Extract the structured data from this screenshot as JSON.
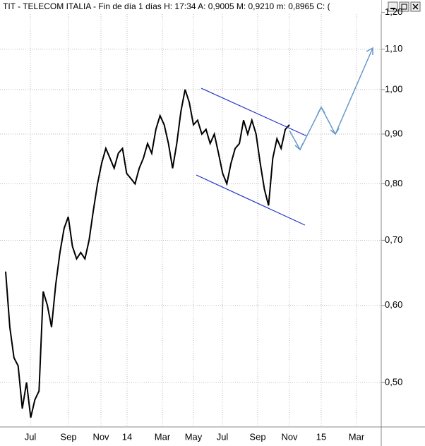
{
  "chart_data": {
    "type": "line",
    "title": "TIT - TELECOM ITALIA - Fin de día 1 días  H: 17:34  A: 0,9005  M: 0,9210  m: 0,8965  C: (",
    "x_axis_labels": [
      "Jul",
      "Sep",
      "Nov",
      "14",
      "Mar",
      "May",
      "Jul",
      "Sep",
      "Nov",
      "15",
      "Mar"
    ],
    "series": [
      {
        "name": "TIT",
        "color": "#000000",
        "values": [
          0.65,
          0.57,
          0.53,
          0.52,
          0.47,
          0.5,
          0.46,
          0.48,
          0.49,
          0.62,
          0.6,
          0.57,
          0.63,
          0.68,
          0.72,
          0.74,
          0.69,
          0.67,
          0.68,
          0.67,
          0.7,
          0.75,
          0.8,
          0.84,
          0.87,
          0.85,
          0.83,
          0.86,
          0.87,
          0.82,
          0.81,
          0.8,
          0.83,
          0.85,
          0.88,
          0.86,
          0.91,
          0.94,
          0.92,
          0.88,
          0.83,
          0.88,
          0.95,
          1.0,
          0.97,
          0.92,
          0.93,
          0.9,
          0.91,
          0.88,
          0.9,
          0.86,
          0.82,
          0.8,
          0.84,
          0.87,
          0.88,
          0.93,
          0.9,
          0.93,
          0.9,
          0.84,
          0.79,
          0.76,
          0.85,
          0.89,
          0.87,
          0.91,
          0.92
        ]
      }
    ],
    "log_scale": true,
    "grid": true,
    "ylim": [
      0.45,
      1.236
    ],
    "yticks": [
      {
        "value": 0.5,
        "label": "0,50"
      },
      {
        "value": 0.6,
        "label": "0,60"
      },
      {
        "value": 0.7,
        "label": "0,70"
      },
      {
        "value": 0.8,
        "label": "0,80"
      },
      {
        "value": 0.9,
        "label": "0,90"
      },
      {
        "value": 1.0,
        "label": "1,00"
      },
      {
        "value": 1.1,
        "label": "1,10"
      },
      {
        "value": 1.2,
        "label": "1,20"
      }
    ]
  }
}
